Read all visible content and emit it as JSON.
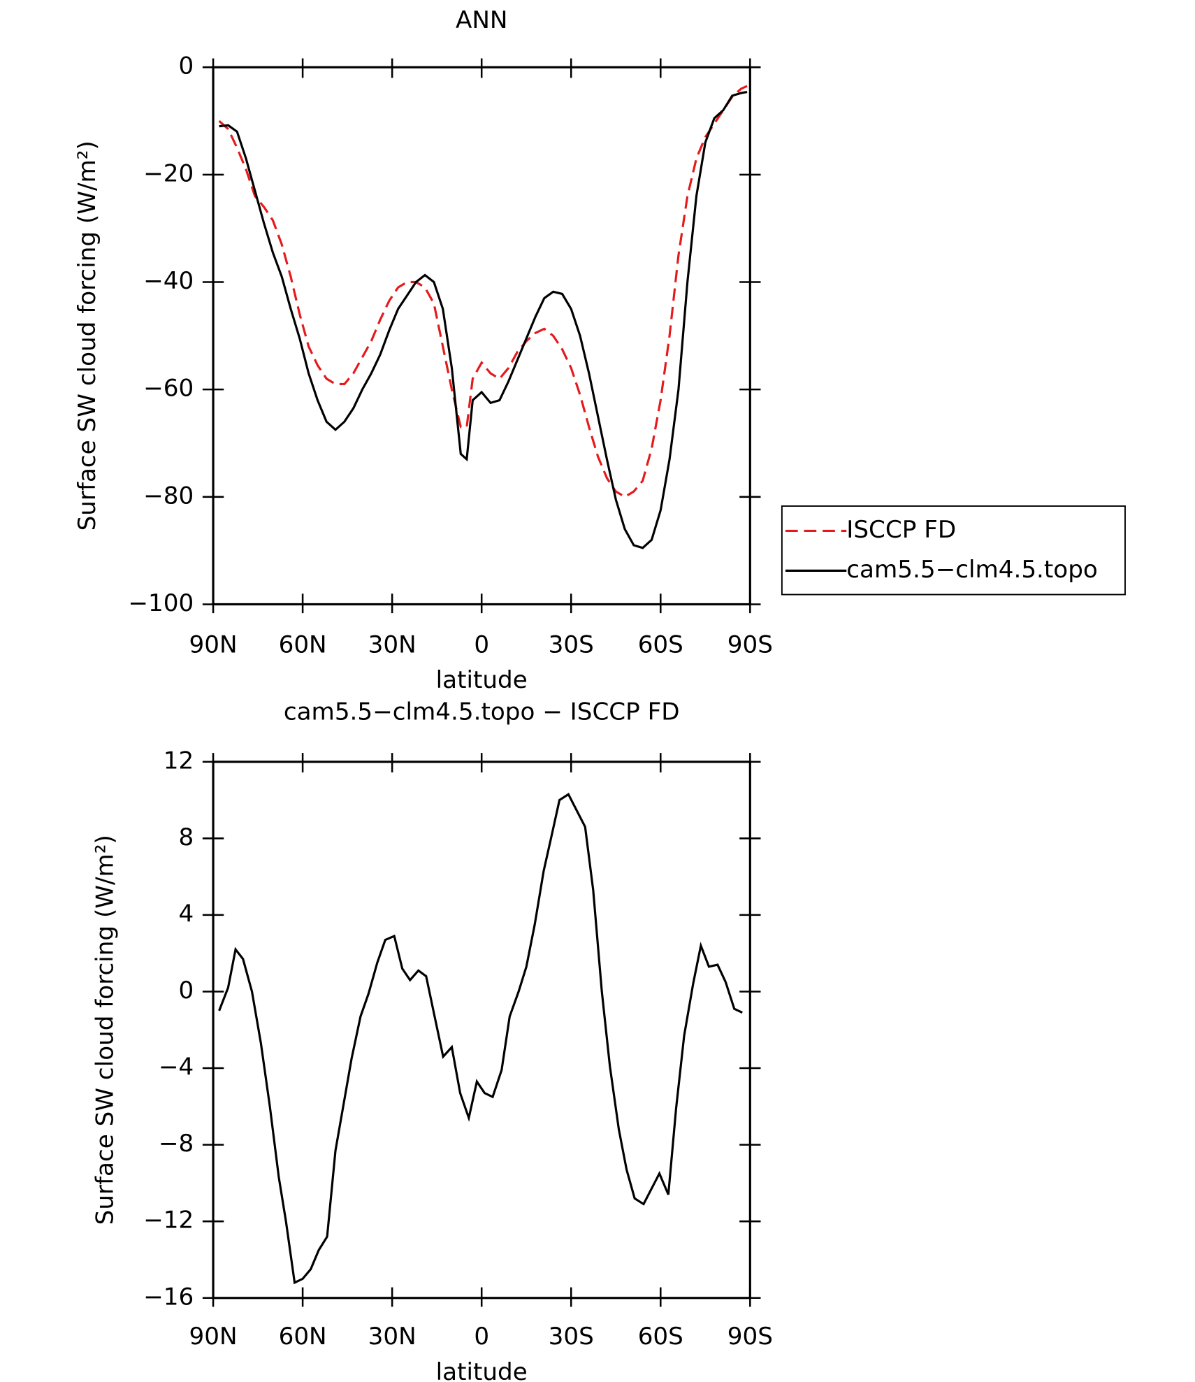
{
  "chart_data": [
    {
      "type": "line",
      "title": "ANN",
      "xlabel": "latitude",
      "ylabel": "Surface SW cloud forcing (W/m²)",
      "legend": "right",
      "x": [
        88,
        85,
        82,
        79,
        76,
        73,
        70,
        67,
        64,
        61,
        58,
        55,
        52,
        49,
        46,
        43,
        40,
        37,
        34,
        31,
        28,
        25,
        22,
        19,
        16,
        13,
        10,
        7,
        5,
        3,
        0,
        -3,
        -6,
        -9,
        -12,
        -15,
        -18,
        -21,
        -24,
        -27,
        -30,
        -33,
        -36,
        -39,
        -42,
        -45,
        -48,
        -51,
        -54,
        -57,
        -60,
        -63,
        -66,
        -69,
        -72,
        -75,
        -78,
        -81,
        -84,
        -87,
        -89
      ],
      "series": [
        {
          "name": "ISCCP FD",
          "color": "#e41a1c",
          "dash": "dashed",
          "values": [
            -10,
            -11.5,
            -15,
            -19,
            -24,
            -26,
            -28.5,
            -33,
            -39,
            -46,
            -52,
            -55.5,
            -58,
            -59,
            -59,
            -57,
            -54,
            -51,
            -47,
            -43.5,
            -41,
            -40,
            -40,
            -41,
            -44,
            -52,
            -60,
            -67,
            -67,
            -58,
            -55,
            -57,
            -58,
            -56,
            -53,
            -51,
            -49.5,
            -48.7,
            -50,
            -52.5,
            -56,
            -61,
            -67,
            -72.5,
            -76.5,
            -79,
            -80,
            -79,
            -77,
            -71,
            -62,
            -50,
            -35,
            -24,
            -17,
            -13,
            -10.5,
            -8,
            -5.5,
            -4,
            -3.5
          ]
        },
        {
          "name": "cam5.5−clm4.5.topo",
          "color": "#000000",
          "dash": "solid",
          "values": [
            -11,
            -10.8,
            -12,
            -17,
            -23,
            -29,
            -34.5,
            -39,
            -45,
            -50.5,
            -57,
            -62,
            -66,
            -67.5,
            -66,
            -63.5,
            -60,
            -57,
            -53.5,
            -49,
            -45,
            -42.5,
            -40,
            -38.7,
            -40,
            -45,
            -56,
            -72,
            -73,
            -62,
            -60.5,
            -62.5,
            -62,
            -58.5,
            -54.5,
            -50.5,
            -46.5,
            -43,
            -41.8,
            -42.2,
            -45,
            -50,
            -57,
            -65,
            -73,
            -80.5,
            -86,
            -89,
            -89.5,
            -88,
            -82.5,
            -73,
            -60,
            -40,
            -24,
            -14,
            -9.5,
            -8,
            -5.3,
            -4.8,
            -4.6
          ]
        }
      ],
      "xlim": [
        90,
        -90
      ],
      "xticks": [
        {
          "value": 90,
          "label": "90N"
        },
        {
          "value": 60,
          "label": "60N"
        },
        {
          "value": 30,
          "label": "30N"
        },
        0,
        {
          "value": -30,
          "label": "30S"
        },
        {
          "value": -60,
          "label": "60S"
        },
        {
          "value": -90,
          "label": "90S"
        }
      ],
      "ylim": [
        -100,
        0
      ],
      "yticks": [
        {
          "value": -100,
          "label": "−100"
        },
        {
          "value": -80,
          "label": "−80"
        },
        {
          "value": -60,
          "label": "−60"
        },
        {
          "value": -40,
          "label": "−40"
        },
        {
          "value": -20,
          "label": "−20"
        },
        0
      ]
    },
    {
      "type": "line",
      "title": "cam5.5−clm4.5.topo − ISCCP FD",
      "xlabel": "latitude",
      "ylabel": "Surface SW cloud forcing (W/m²)",
      "x": [
        88,
        85,
        82.5,
        80,
        77,
        74,
        71,
        68,
        65.6,
        62.7,
        60,
        57.3,
        54.6,
        51.8,
        49,
        43.6,
        40.6,
        37.9,
        35,
        32.3,
        29.3,
        26.6,
        24,
        21.2,
        18.6,
        15.9,
        12.9,
        10,
        7.2,
        4.3,
        1.6,
        -1,
        -3.7,
        -6.7,
        -9.4,
        -12.4,
        -15,
        -17.8,
        -20.8,
        -23.4,
        -26.1,
        -29.1,
        -34.7,
        -37.4,
        -40.3,
        -43,
        -46,
        -48.6,
        -51.3,
        -54.3,
        -59.6,
        -62.6,
        -65.2,
        -67.9,
        -70.9,
        -73.5,
        -76.2,
        -79.1,
        -81.8,
        -84.7,
        -87.4
      ],
      "series": [
        {
          "color": "#000000",
          "dash": "solid",
          "values": [
            -1,
            0.2,
            2.2,
            1.7,
            0,
            -2.7,
            -6,
            -9.7,
            -12,
            -15.2,
            -15,
            -14.5,
            -13.5,
            -12.8,
            -8.3,
            -3.5,
            -1.3,
            -0.1,
            1.5,
            2.7,
            2.9,
            1.2,
            0.6,
            1.1,
            0.8,
            -1.2,
            -3.4,
            -2.9,
            -5.3,
            -6.6,
            -4.7,
            -5.3,
            -5.5,
            -4.1,
            -1.3,
            0,
            1.3,
            3.5,
            6.3,
            8.1,
            10,
            10.3,
            8.6,
            5.3,
            0,
            -3.9,
            -7.2,
            -9.3,
            -10.8,
            -11.1,
            -9.5,
            -10.6,
            -6.1,
            -2.3,
            0.4,
            2.4,
            1.3,
            1.4,
            0.5,
            -0.9,
            -1.1
          ]
        }
      ],
      "xlim": [
        90,
        -90
      ],
      "xticks": [
        {
          "value": 90,
          "label": "90N"
        },
        {
          "value": 60,
          "label": "60N"
        },
        {
          "value": 30,
          "label": "30N"
        },
        0,
        {
          "value": -30,
          "label": "30S"
        },
        {
          "value": -60,
          "label": "60S"
        },
        {
          "value": -90,
          "label": "90S"
        }
      ],
      "ylim": [
        -16,
        12
      ],
      "yticks": [
        {
          "value": -16,
          "label": "−16"
        },
        {
          "value": -12,
          "label": "−12"
        },
        {
          "value": -8,
          "label": "−8"
        },
        {
          "value": -4,
          "label": "−4"
        },
        0,
        4,
        8,
        12
      ]
    }
  ]
}
